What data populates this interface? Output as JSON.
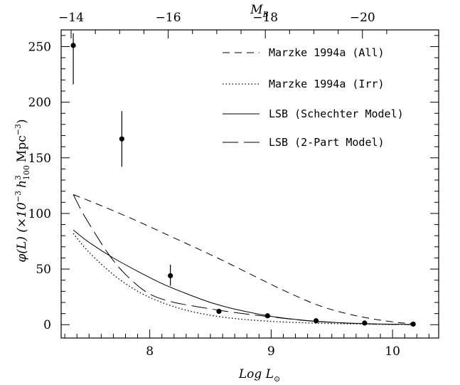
{
  "chart_data": {
    "type": "scatter",
    "xlabel": "Log L",
    "xlabel_sub": "⊙",
    "top_xlabel": "M",
    "top_xlabel_sub": "B",
    "ylabel_prefix": "φ(L)  (×10",
    "ylabel_exp1": "−3",
    "ylabel_h": "h",
    "ylabel_h_sup": "3",
    "ylabel_h_sub": "100",
    "ylabel_unit": "Mpc",
    "ylabel_exp2": "−3",
    "ylabel_suffix": ")",
    "xlim": [
      7.27,
      10.38
    ],
    "ylim": [
      -12,
      265
    ],
    "x_ticks_major": [
      8,
      9,
      10
    ],
    "x_tick_labels": [
      "8",
      "9",
      "10"
    ],
    "y_ticks_major": [
      0,
      50,
      100,
      150,
      200,
      250
    ],
    "y_tick_labels": [
      "0",
      "50",
      "100",
      "150",
      "200",
      "250"
    ],
    "top_axis": {
      "relation": "M_B = 4.38 - 2.5 * logL (approx)",
      "ticks_major": [
        -14,
        -16,
        -18,
        -20
      ],
      "tick_labels": [
        "−14",
        "−16",
        "−18",
        "−20"
      ]
    },
    "legend_position": "top-right",
    "points": [
      {
        "x": 7.37,
        "y": 251,
        "err_low": 216,
        "err_high": 262
      },
      {
        "x": 7.77,
        "y": 167,
        "err_low": 142,
        "err_high": 192
      },
      {
        "x": 8.17,
        "y": 44,
        "err_low": 35,
        "err_high": 54
      },
      {
        "x": 8.57,
        "y": 12
      },
      {
        "x": 8.97,
        "y": 8
      },
      {
        "x": 9.37,
        "y": 3.5
      },
      {
        "x": 9.77,
        "y": 1.5
      },
      {
        "x": 10.17,
        "y": 0.5
      }
    ],
    "series": [
      {
        "name": "Marzke 1994a (All)",
        "style": "short-dash",
        "x": [
          7.37,
          7.6,
          7.9,
          8.2,
          8.5,
          8.8,
          9.1,
          9.4,
          9.7,
          10.0,
          10.17
        ],
        "y": [
          117,
          107,
          93,
          78,
          63,
          47,
          31,
          17,
          8,
          2.5,
          1
        ]
      },
      {
        "name": "Marzke 1994a (Irr)",
        "style": "dotted",
        "x": [
          7.37,
          7.5,
          7.7,
          7.9,
          8.1,
          8.3,
          8.5,
          8.7,
          9.0,
          9.3,
          9.6,
          9.9,
          10.17
        ],
        "y": [
          82,
          65,
          45,
          30,
          20,
          13,
          8.5,
          5.5,
          3,
          1.6,
          0.8,
          0.3,
          0.1
        ]
      },
      {
        "name": "LSB (Schechter Model)",
        "style": "solid",
        "x": [
          7.37,
          7.5,
          7.7,
          7.9,
          8.1,
          8.3,
          8.5,
          8.7,
          9.0,
          9.3,
          9.6,
          9.9,
          10.17
        ],
        "y": [
          85,
          74,
          60,
          48,
          37,
          28,
          20,
          14,
          7.5,
          3.7,
          1.6,
          0.6,
          0.2
        ]
      },
      {
        "name": "LSB (2-Part Model)",
        "style": "long-dash",
        "x": [
          7.37,
          7.45,
          7.55,
          7.65,
          7.75,
          7.85,
          7.95,
          8.05,
          8.2,
          8.4,
          8.6,
          8.8,
          9.0,
          9.3,
          9.6,
          9.9,
          10.17
        ],
        "y": [
          117,
          100,
          82,
          65,
          51,
          40,
          31,
          25,
          20,
          16,
          12.5,
          9.5,
          7,
          3.5,
          1.5,
          0.5,
          0.1
        ]
      }
    ]
  }
}
